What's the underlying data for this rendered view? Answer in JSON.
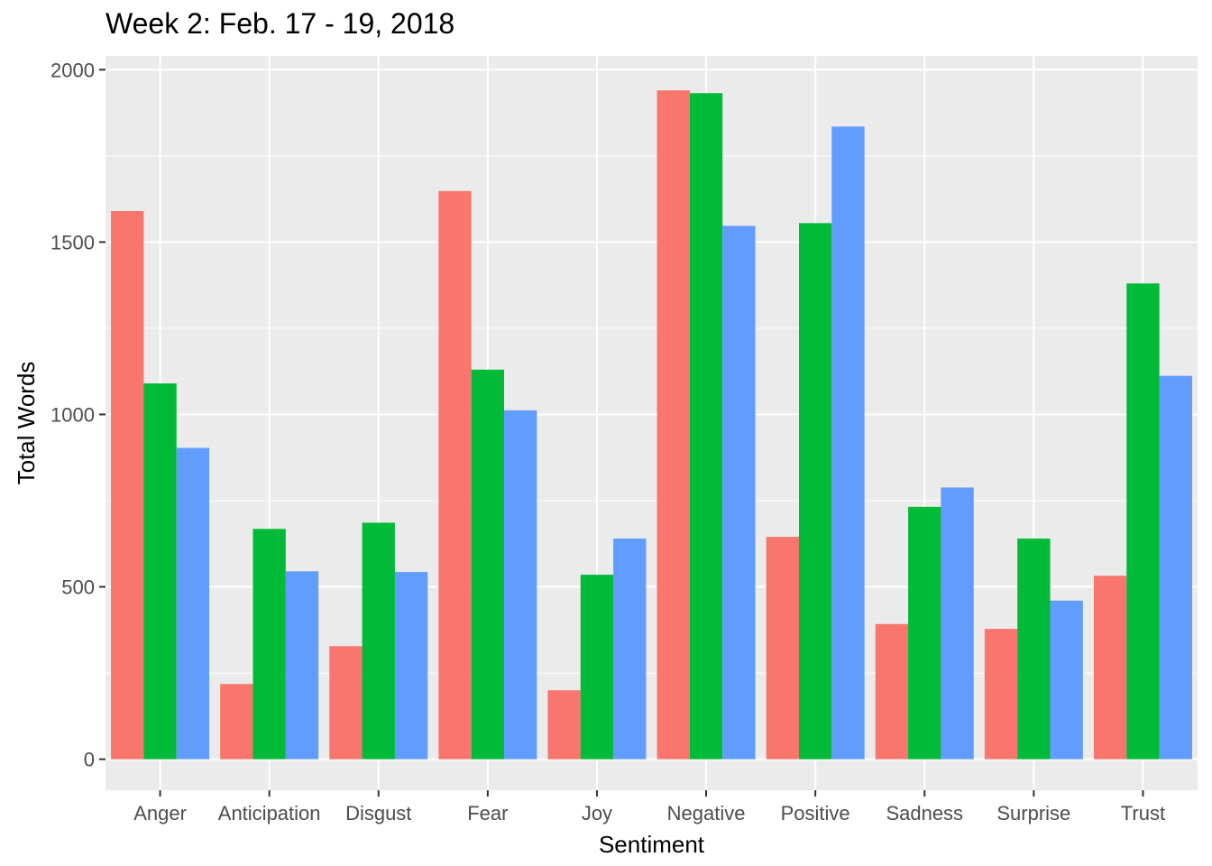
{
  "chart_data": {
    "type": "bar",
    "title": "Week 2: Feb. 17 - 19, 2018",
    "xlabel": "Sentiment",
    "ylabel": "Total Words",
    "ylim": [
      -90,
      2040
    ],
    "yticks": [
      0,
      500,
      1000,
      1500,
      2000
    ],
    "grid": true,
    "legend": "none",
    "categories": [
      "Anger",
      "Anticipation",
      "Disgust",
      "Fear",
      "Joy",
      "Negative",
      "Positive",
      "Sadness",
      "Surprise",
      "Trust"
    ],
    "series": [
      {
        "color": "#F8766D",
        "values": [
          1590,
          218,
          328,
          1648,
          200,
          1940,
          645,
          392,
          378,
          532
        ]
      },
      {
        "color": "#00BA38",
        "values": [
          1090,
          668,
          686,
          1130,
          535,
          1932,
          1555,
          732,
          640,
          1380
        ]
      },
      {
        "color": "#619CFF",
        "values": [
          903,
          545,
          543,
          1012,
          640,
          1547,
          1835,
          788,
          460,
          1112
        ]
      }
    ],
    "colors": {
      "panel": "#EBEBEB",
      "grid_major": "#FFFFFF",
      "tick_text": "#4D4D4D",
      "tick_mark": "#333333"
    }
  }
}
